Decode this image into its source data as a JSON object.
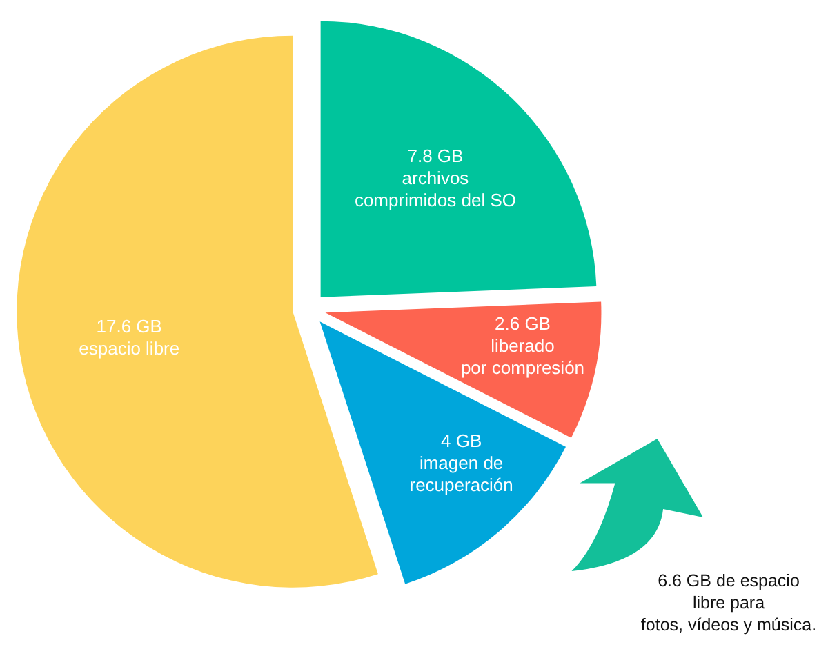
{
  "chart_data": {
    "type": "pie",
    "categories": [
      "archivos\ncomprimidos del SO",
      "liberado\npor compresión",
      "imagen de\nrecuperación",
      "espacio libre"
    ],
    "values": [
      7.8,
      2.6,
      4,
      17.6
    ],
    "colors": [
      "#00c49c",
      "#fd6450",
      "#00a6db",
      "#fdd35a"
    ],
    "value_labels": [
      "7.8 GB",
      "2.6 GB",
      "4 GB",
      "17.6 GB"
    ],
    "annotations": [
      "6.6 GB de espacio\nlibre para\nfotos, vídeos y música."
    ]
  }
}
